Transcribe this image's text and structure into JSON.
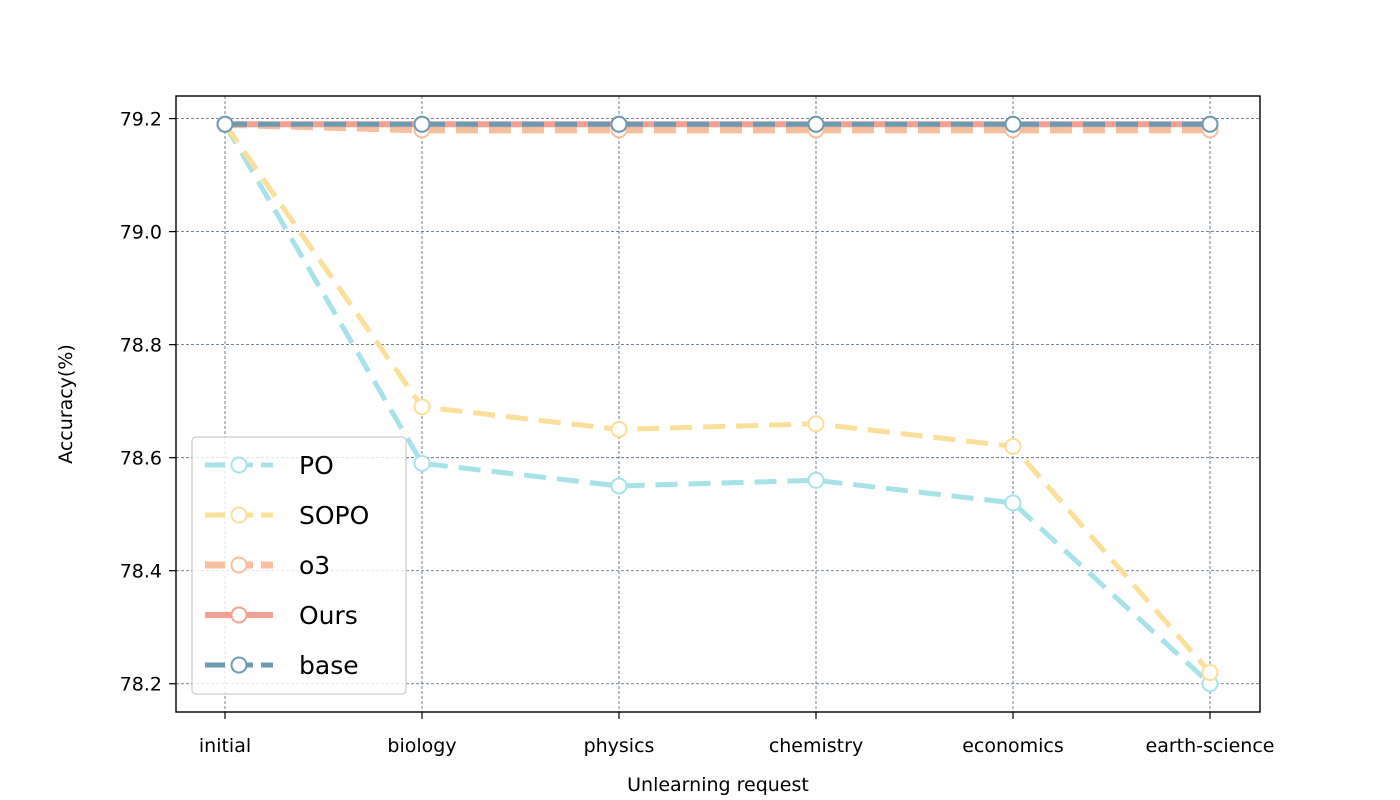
{
  "chart_data": {
    "type": "line",
    "title": "",
    "xlabel": "Unlearning request",
    "ylabel": "Accuracy(%)",
    "categories": [
      "initial",
      "biology",
      "physics",
      "chemistry",
      "economics",
      "earth-science"
    ],
    "ylim": [
      78.15,
      79.24
    ],
    "yticks": [
      78.2,
      78.4,
      78.6,
      78.8,
      79.0,
      79.2
    ],
    "ytick_labels": [
      "78.2",
      "78.4",
      "78.6",
      "78.8",
      "79.0",
      "79.2"
    ],
    "grid": true,
    "legend_position": "lower-left",
    "series": [
      {
        "name": "PO",
        "color": "#a6e3e9",
        "values": [
          79.19,
          78.59,
          78.55,
          78.56,
          78.52,
          78.2
        ]
      },
      {
        "name": "SOPO",
        "color": "#fbdf99",
        "values": [
          79.19,
          78.69,
          78.65,
          78.66,
          78.62,
          78.22
        ]
      },
      {
        "name": "o3",
        "color": "#f8bf9e",
        "values": [
          79.19,
          79.18,
          79.18,
          79.18,
          79.18,
          79.18
        ]
      },
      {
        "name": "Ours",
        "color": "#f4a192",
        "values": [
          79.19,
          79.19,
          79.19,
          79.19,
          79.19,
          79.19
        ]
      },
      {
        "name": "base",
        "color": "#6a9ab4",
        "values": [
          79.19,
          79.19,
          79.19,
          79.19,
          79.19,
          79.19
        ]
      }
    ]
  }
}
